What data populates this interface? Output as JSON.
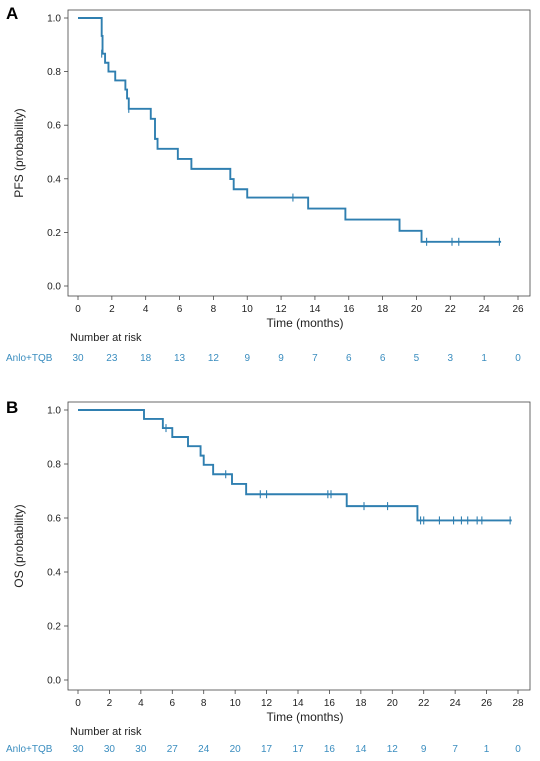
{
  "panels": [
    {
      "letter": "A",
      "risk_title": "Number at risk",
      "risk_group": "Anlo+TQB",
      "risk_values": [
        "30",
        "23",
        "18",
        "13",
        "12",
        "9",
        "9",
        "7",
        "6",
        "6",
        "5",
        "3",
        "1",
        "0"
      ]
    },
    {
      "letter": "B",
      "risk_title": "Number at risk",
      "risk_group": "Anlo+TQB",
      "risk_values": [
        "30",
        "30",
        "30",
        "27",
        "24",
        "20",
        "17",
        "17",
        "16",
        "14",
        "12",
        "9",
        "7",
        "1",
        "0"
      ]
    }
  ],
  "chart_data": [
    {
      "type": "line",
      "subtype": "kaplan-meier",
      "title": "",
      "xlabel": "Time (months)",
      "ylabel": "PFS (probability)",
      "xlim": [
        0,
        26
      ],
      "ylim": [
        0,
        1
      ],
      "x_ticks": [
        0,
        2,
        4,
        6,
        8,
        10,
        12,
        14,
        16,
        18,
        20,
        22,
        24,
        26
      ],
      "y_ticks": [
        0.0,
        0.2,
        0.4,
        0.6,
        0.8,
        1.0
      ],
      "y_tick_labels": [
        "0.0",
        "0.2",
        "0.4",
        "0.6",
        "0.8",
        "1.0"
      ],
      "grid": false,
      "line_color": "#2f7fb0",
      "series": [
        {
          "steps": [
            [
              0,
              1.0
            ],
            [
              1.4,
              0.933
            ],
            [
              1.45,
              0.867
            ],
            [
              1.6,
              0.833
            ],
            [
              1.8,
              0.8
            ],
            [
              2.2,
              0.767
            ],
            [
              2.8,
              0.733
            ],
            [
              2.9,
              0.7
            ],
            [
              3.0,
              0.661
            ],
            [
              4.3,
              0.624
            ],
            [
              4.55,
              0.549
            ],
            [
              4.7,
              0.512
            ],
            [
              5.9,
              0.474
            ],
            [
              6.7,
              0.437
            ],
            [
              9.0,
              0.399
            ],
            [
              9.2,
              0.361
            ],
            [
              10.0,
              0.33
            ],
            [
              13.6,
              0.289
            ],
            [
              15.8,
              0.248
            ],
            [
              19.0,
              0.206
            ],
            [
              20.3,
              0.165
            ],
            [
              25.0,
              0.165
            ]
          ],
          "censored": [
            [
              1.4,
              0.867
            ],
            [
              3.0,
              0.661
            ],
            [
              12.7,
              0.33
            ],
            [
              20.6,
              0.165
            ],
            [
              22.1,
              0.165
            ],
            [
              22.5,
              0.165
            ],
            [
              24.9,
              0.165
            ]
          ]
        }
      ],
      "risk_table_times": [
        0,
        2,
        4,
        6,
        8,
        10,
        12,
        14,
        16,
        18,
        20,
        22,
        24,
        26
      ]
    },
    {
      "type": "line",
      "subtype": "kaplan-meier",
      "title": "",
      "xlabel": "Time (months)",
      "ylabel": "OS (probability)",
      "xlim": [
        0,
        28
      ],
      "ylim": [
        0,
        1
      ],
      "x_ticks": [
        0,
        2,
        4,
        6,
        8,
        10,
        12,
        14,
        16,
        18,
        20,
        22,
        24,
        26,
        28
      ],
      "y_ticks": [
        0.0,
        0.2,
        0.4,
        0.6,
        0.8,
        1.0
      ],
      "y_tick_labels": [
        "0.0",
        "0.2",
        "0.4",
        "0.6",
        "0.8",
        "1.0"
      ],
      "grid": false,
      "line_color": "#2f7fb0",
      "series": [
        {
          "steps": [
            [
              0,
              1.0
            ],
            [
              4.2,
              0.967
            ],
            [
              5.4,
              0.933
            ],
            [
              6.0,
              0.9
            ],
            [
              7.0,
              0.866
            ],
            [
              7.8,
              0.831
            ],
            [
              8.0,
              0.797
            ],
            [
              8.6,
              0.762
            ],
            [
              9.8,
              0.726
            ],
            [
              10.7,
              0.688
            ],
            [
              17.1,
              0.644
            ],
            [
              21.6,
              0.591
            ],
            [
              27.6,
              0.591
            ]
          ],
          "censored": [
            [
              5.6,
              0.933
            ],
            [
              9.4,
              0.762
            ],
            [
              11.6,
              0.688
            ],
            [
              12.0,
              0.688
            ],
            [
              15.9,
              0.688
            ],
            [
              16.1,
              0.688
            ],
            [
              18.2,
              0.644
            ],
            [
              19.7,
              0.644
            ],
            [
              21.8,
              0.591
            ],
            [
              22.0,
              0.591
            ],
            [
              23.0,
              0.591
            ],
            [
              23.9,
              0.591
            ],
            [
              24.4,
              0.591
            ],
            [
              24.8,
              0.591
            ],
            [
              25.4,
              0.591
            ],
            [
              25.7,
              0.591
            ],
            [
              27.5,
              0.591
            ]
          ]
        }
      ],
      "risk_table_times": [
        0,
        2,
        4,
        6,
        8,
        10,
        12,
        14,
        16,
        18,
        20,
        22,
        24,
        26,
        28
      ]
    }
  ]
}
